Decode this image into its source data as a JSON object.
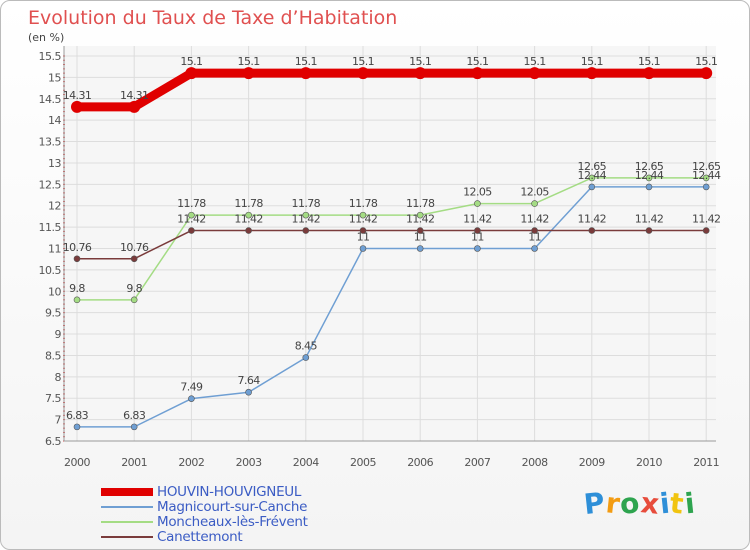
{
  "header": {
    "title": "Evolution du Taux de Taxe d’Habitation",
    "unit": "(en %)"
  },
  "chart_data": {
    "type": "line",
    "x": [
      "2000",
      "2001",
      "2002",
      "2003",
      "2004",
      "2005",
      "2006",
      "2007",
      "2008",
      "2009",
      "2010",
      "2011"
    ],
    "ylim": [
      6.5,
      15.5
    ],
    "yticks": [
      "6.5",
      "7",
      "7.5",
      "8",
      "8.5",
      "9",
      "9.5",
      "10",
      "10.5",
      "11",
      "11.5",
      "12",
      "12.5",
      "13",
      "13.5",
      "14",
      "14.5",
      "15",
      "15.5"
    ],
    "grid": true,
    "legend_position": "bottom-left",
    "series": [
      {
        "name": "HOUVIN-HOUVIGNEUL",
        "color": "#e00000",
        "values": [
          14.31,
          14.31,
          15.1,
          15.1,
          15.1,
          15.1,
          15.1,
          15.1,
          15.1,
          15.1,
          15.1,
          15.1
        ],
        "labels": [
          "14.31",
          "14.31",
          "15.1",
          "15.1",
          "15.1",
          "15.1",
          "15.1",
          "15.1",
          "15.1",
          "15.1",
          "15.1",
          "15.1"
        ]
      },
      {
        "name": "Magnicourt-sur-Canche",
        "color": "#6f9fd3",
        "values": [
          6.83,
          6.83,
          7.49,
          7.64,
          8.45,
          11,
          11,
          11,
          11,
          12.44,
          12.44,
          12.44
        ],
        "labels": [
          "6.83",
          "6.83",
          "7.49",
          "7.64",
          "8.45",
          "11",
          "11",
          "11",
          "11",
          "12.44",
          "12.44",
          "12.44"
        ]
      },
      {
        "name": "Moncheaux-lès-Frévent",
        "color": "#a4dc84",
        "values": [
          9.8,
          9.8,
          11.78,
          11.78,
          11.78,
          11.78,
          11.78,
          12.05,
          12.05,
          12.65,
          12.65,
          12.65
        ],
        "labels": [
          "9.8",
          "9.8",
          "11.78",
          "11.78",
          "11.78",
          "11.78",
          "11.78",
          "12.05",
          "12.05",
          "12.65",
          "12.65",
          "12.65"
        ]
      },
      {
        "name": "Canettemont",
        "color": "#7a3b3b",
        "values": [
          10.76,
          10.76,
          11.42,
          11.42,
          11.42,
          11.42,
          11.42,
          11.42,
          11.42,
          11.42,
          11.42,
          11.42
        ],
        "labels": [
          "10.76",
          "10.76",
          "11.42",
          "11.42",
          "11.42",
          "11.42",
          "11.42",
          "11.42",
          "11.42",
          "11.42",
          "11.42",
          "11.42"
        ]
      }
    ]
  },
  "logo": {
    "letters": [
      "P",
      "r",
      "o",
      "x",
      "i",
      "t",
      "i"
    ],
    "colors": [
      "#2e8fd8",
      "#f39c12",
      "#2ea44f",
      "#e74c3c",
      "#2e8fd8",
      "#f1c40f",
      "#2ea44f"
    ]
  }
}
